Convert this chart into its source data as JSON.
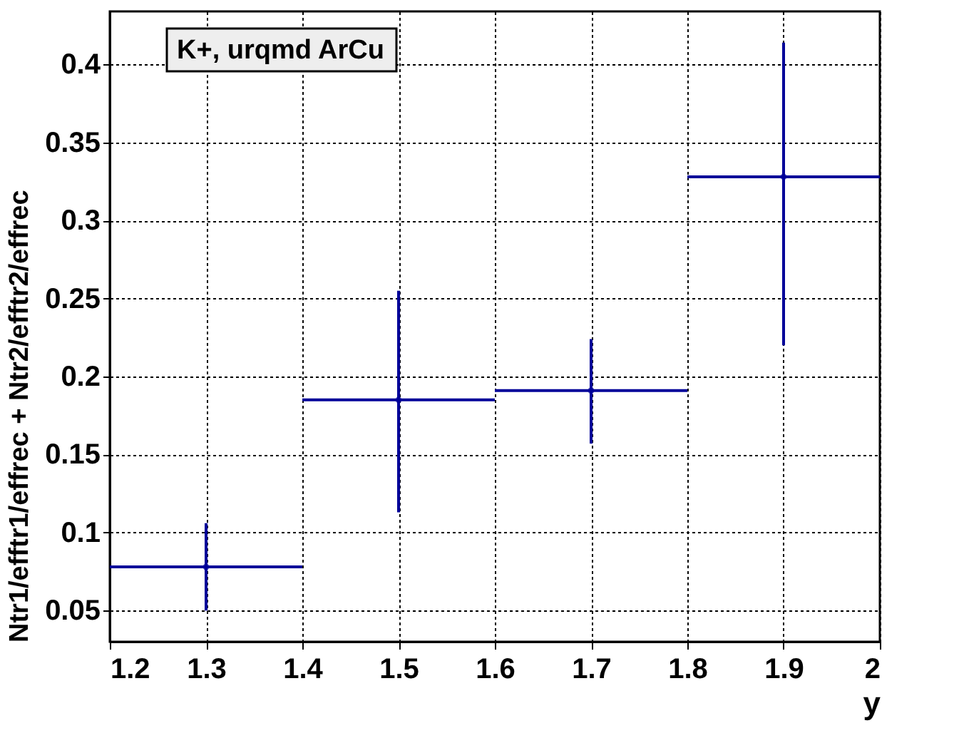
{
  "chart_data": {
    "type": "scatter",
    "xlabel": "y",
    "ylabel": "Ntr1/efftr1/effrec + Ntr2/efftr2/effrec",
    "annotations": [
      "K+, urqmd ArCu"
    ],
    "x": [
      1.3,
      1.5,
      1.7,
      1.9
    ],
    "series": [
      {
        "color": "#000099",
        "values": [
          0.078,
          0.185,
          0.191,
          0.328
        ],
        "errors": [
          [
            0.05,
            0.106
          ],
          [
            0.113,
            0.255
          ],
          [
            0.157,
            0.224
          ],
          [
            0.22,
            0.414
          ]
        ],
        "xerrors": [
          0.1,
          0.1,
          0.1,
          0.1
        ]
      }
    ],
    "xlim": [
      1.2,
      2.0
    ],
    "xticks": [
      1.2,
      1.3,
      1.4,
      1.5,
      1.6,
      1.7,
      1.8,
      1.9,
      {
        "value": 2.0,
        "label": "2"
      }
    ],
    "ylim": [
      0.03,
      0.434
    ],
    "yticks": [
      0.05,
      0.1,
      0.15,
      0.2,
      0.25,
      0.3,
      0.35,
      0.4
    ],
    "grid": true
  }
}
